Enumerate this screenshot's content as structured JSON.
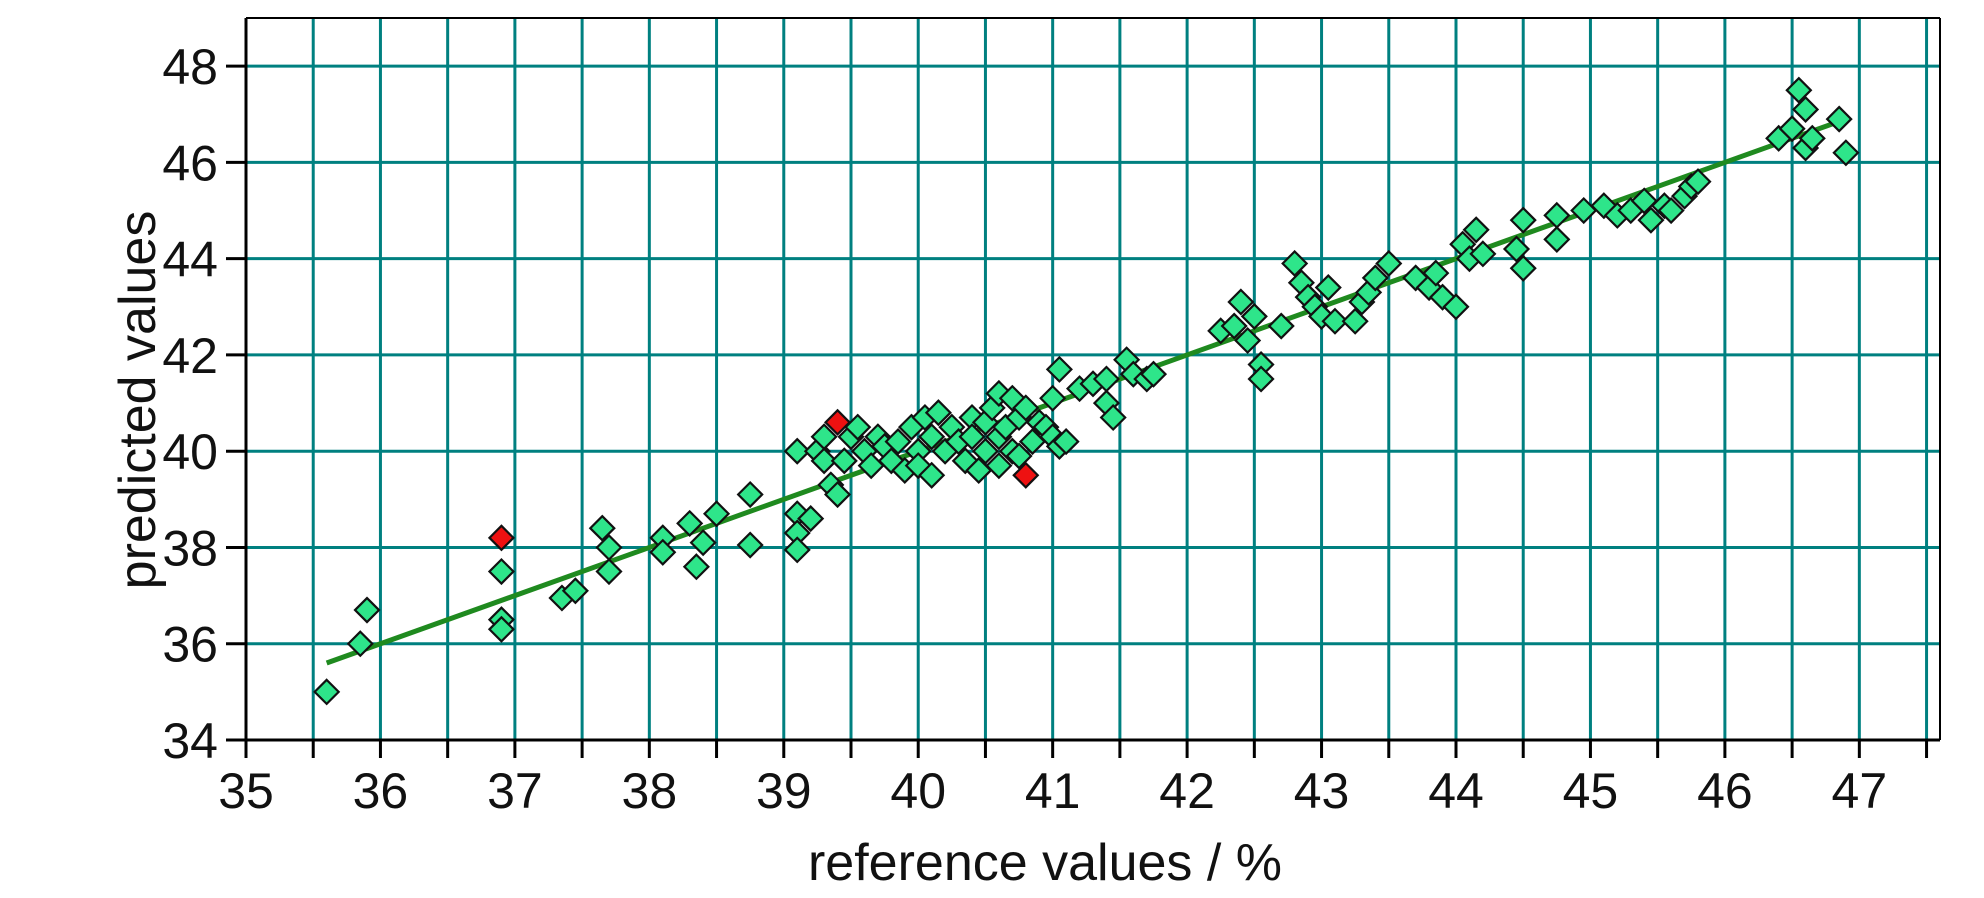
{
  "chart_data": {
    "type": "scatter",
    "xlabel": "reference values / %",
    "ylabel": "predicted values",
    "xlim": [
      35,
      47.6
    ],
    "ylim": [
      34,
      49
    ],
    "x_ticks": [
      "35",
      "36",
      "37",
      "38",
      "39",
      "40",
      "41",
      "42",
      "43",
      "44",
      "45",
      "46",
      "47"
    ],
    "y_ticks": [
      "34",
      "36",
      "38",
      "40",
      "42",
      "44",
      "46",
      "48"
    ],
    "grid": true,
    "legend": "none",
    "colors": {
      "plot_background": "#ffffff",
      "grid": "#008080",
      "axis": "#000000",
      "point_fill": "#2ee58a",
      "point_outline": "#111111",
      "outlier_fill": "#ee1111",
      "fit_line": "#1f8a1f"
    },
    "fit_line": {
      "x": [
        35.6,
        46.9
      ],
      "y": [
        35.6,
        46.9
      ]
    },
    "series": [
      {
        "marker": "diamond",
        "points": [
          [
            35.6,
            35.0
          ],
          [
            35.9,
            36.7
          ],
          [
            35.85,
            36.0
          ],
          [
            36.9,
            37.5
          ],
          [
            36.9,
            36.5
          ],
          [
            36.9,
            36.3
          ],
          [
            37.35,
            36.95
          ],
          [
            37.45,
            37.1
          ],
          [
            37.65,
            38.4
          ],
          [
            37.7,
            38.0
          ],
          [
            37.7,
            37.5
          ],
          [
            38.1,
            38.2
          ],
          [
            38.1,
            37.9
          ],
          [
            38.3,
            38.5
          ],
          [
            38.35,
            37.6
          ],
          [
            38.4,
            38.1
          ],
          [
            38.5,
            38.7
          ],
          [
            38.75,
            39.1
          ],
          [
            38.75,
            38.05
          ],
          [
            39.1,
            40.0
          ],
          [
            39.1,
            38.7
          ],
          [
            39.1,
            38.3
          ],
          [
            39.1,
            37.95
          ],
          [
            39.2,
            38.6
          ],
          [
            39.25,
            40.0
          ],
          [
            39.3,
            40.3
          ],
          [
            39.3,
            39.8
          ],
          [
            39.35,
            39.3
          ],
          [
            39.4,
            39.1
          ],
          [
            39.45,
            39.8
          ],
          [
            39.5,
            40.3
          ],
          [
            39.55,
            40.5
          ],
          [
            39.6,
            40.0
          ],
          [
            39.65,
            39.7
          ],
          [
            39.7,
            40.3
          ],
          [
            39.75,
            40.1
          ],
          [
            39.8,
            39.8
          ],
          [
            39.85,
            40.2
          ],
          [
            39.9,
            39.6
          ],
          [
            39.95,
            40.5
          ],
          [
            40.0,
            40.0
          ],
          [
            40.0,
            39.7
          ],
          [
            40.05,
            40.7
          ],
          [
            40.1,
            40.3
          ],
          [
            40.1,
            39.5
          ],
          [
            40.15,
            40.8
          ],
          [
            40.2,
            40.0
          ],
          [
            40.25,
            40.5
          ],
          [
            40.3,
            40.2
          ],
          [
            40.35,
            39.8
          ],
          [
            40.4,
            40.7
          ],
          [
            40.4,
            40.3
          ],
          [
            40.45,
            39.6
          ],
          [
            40.5,
            40.6
          ],
          [
            40.5,
            40.0
          ],
          [
            40.55,
            40.9
          ],
          [
            40.6,
            41.2
          ],
          [
            40.6,
            40.3
          ],
          [
            40.6,
            39.7
          ],
          [
            40.65,
            40.5
          ],
          [
            40.7,
            41.1
          ],
          [
            40.7,
            40.0
          ],
          [
            40.75,
            40.7
          ],
          [
            40.75,
            39.9
          ],
          [
            40.8,
            40.9
          ],
          [
            40.85,
            40.2
          ],
          [
            40.9,
            40.6
          ],
          [
            40.95,
            40.5
          ],
          [
            41.0,
            41.1
          ],
          [
            41.0,
            40.3
          ],
          [
            41.05,
            41.7
          ],
          [
            41.05,
            40.1
          ],
          [
            41.1,
            40.2
          ],
          [
            41.2,
            41.3
          ],
          [
            41.3,
            41.4
          ],
          [
            41.4,
            41.5
          ],
          [
            41.4,
            41.0
          ],
          [
            41.45,
            40.7
          ],
          [
            41.55,
            41.9
          ],
          [
            41.6,
            41.6
          ],
          [
            41.7,
            41.5
          ],
          [
            41.75,
            41.6
          ],
          [
            42.25,
            42.5
          ],
          [
            42.35,
            42.6
          ],
          [
            42.4,
            43.1
          ],
          [
            42.45,
            42.3
          ],
          [
            42.5,
            42.8
          ],
          [
            42.55,
            41.8
          ],
          [
            42.55,
            41.5
          ],
          [
            42.7,
            42.6
          ],
          [
            42.8,
            43.9
          ],
          [
            42.85,
            43.5
          ],
          [
            42.9,
            43.2
          ],
          [
            42.95,
            43.0
          ],
          [
            43.0,
            42.8
          ],
          [
            43.05,
            43.4
          ],
          [
            43.1,
            42.7
          ],
          [
            43.25,
            42.7
          ],
          [
            43.3,
            43.1
          ],
          [
            43.35,
            43.3
          ],
          [
            43.4,
            43.6
          ],
          [
            43.5,
            43.9
          ],
          [
            43.7,
            43.6
          ],
          [
            43.8,
            43.4
          ],
          [
            43.85,
            43.7
          ],
          [
            43.9,
            43.2
          ],
          [
            44.0,
            43.0
          ],
          [
            44.05,
            44.3
          ],
          [
            44.1,
            44.0
          ],
          [
            44.15,
            44.6
          ],
          [
            44.2,
            44.1
          ],
          [
            44.45,
            44.2
          ],
          [
            44.5,
            44.8
          ],
          [
            44.5,
            43.8
          ],
          [
            44.75,
            44.9
          ],
          [
            44.75,
            44.4
          ],
          [
            44.95,
            45.0
          ],
          [
            45.1,
            45.1
          ],
          [
            45.2,
            44.9
          ],
          [
            45.3,
            45.0
          ],
          [
            45.4,
            45.2
          ],
          [
            45.45,
            44.8
          ],
          [
            45.55,
            45.1
          ],
          [
            45.6,
            45.0
          ],
          [
            45.7,
            45.3
          ],
          [
            45.75,
            45.5
          ],
          [
            45.8,
            45.6
          ],
          [
            46.4,
            46.5
          ],
          [
            46.5,
            46.7
          ],
          [
            46.55,
            47.5
          ],
          [
            46.6,
            47.1
          ],
          [
            46.6,
            46.3
          ],
          [
            46.65,
            46.5
          ],
          [
            46.85,
            46.9
          ],
          [
            46.9,
            46.2
          ]
        ]
      },
      {
        "marker": "diamond",
        "points": [
          [
            36.9,
            38.2
          ],
          [
            39.4,
            40.6
          ],
          [
            40.8,
            39.5
          ]
        ]
      }
    ]
  }
}
